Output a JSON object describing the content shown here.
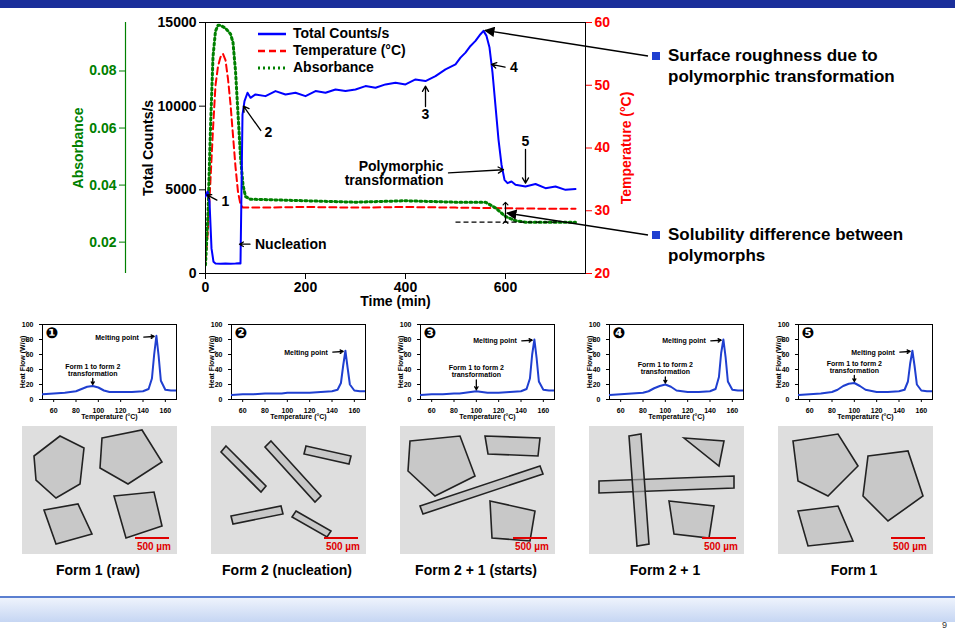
{
  "page_number": 9,
  "chart_data": [
    {
      "type": "line",
      "x_label": "Time (min)",
      "xlim": [
        0,
        760
      ],
      "xticks": [
        0,
        200,
        400,
        600
      ],
      "y_label": "Total Counts/s",
      "ylim": [
        0,
        15000
      ],
      "yticks": [
        0,
        5000,
        10000,
        15000
      ],
      "y2_label": "Temperature (°C)",
      "y2lim": [
        20,
        60
      ],
      "y2ticks": [
        20,
        30,
        40,
        50,
        60
      ],
      "y3_label": "Absorbance",
      "y3lim": [
        0.009,
        0.097
      ],
      "y3ticks": [
        0.02,
        0.04,
        0.06,
        0.08
      ],
      "legend": "top-left",
      "series": [
        {
          "name": "Total Counts/s",
          "color": "#0000ff",
          "line_style": "solid",
          "x": [
            0,
            4,
            8,
            12,
            16,
            20,
            30,
            40,
            50,
            60,
            66,
            70,
            72,
            74,
            78,
            84,
            90,
            100,
            120,
            140,
            160,
            180,
            200,
            220,
            240,
            260,
            280,
            300,
            320,
            340,
            360,
            380,
            400,
            420,
            440,
            460,
            480,
            500,
            510,
            520,
            530,
            540,
            550,
            556,
            562,
            568,
            574,
            580,
            586,
            592,
            598,
            604,
            612,
            620,
            640,
            660,
            680,
            700,
            720,
            740
          ],
          "values": [
            4600,
            4900,
            4300,
            1500,
            700,
            600,
            580,
            600,
            590,
            600,
            610,
            600,
            5000,
            9500,
            10300,
            10800,
            10500,
            10700,
            10600,
            10900,
            10700,
            10800,
            10600,
            10900,
            10800,
            11000,
            10900,
            11000,
            11200,
            11100,
            11300,
            11400,
            11300,
            11600,
            11500,
            11800,
            12200,
            12500,
            12900,
            13200,
            13600,
            13900,
            14300,
            14500,
            14200,
            13500,
            12000,
            10000,
            8000,
            6500,
            5600,
            5400,
            5500,
            5300,
            5200,
            5350,
            5100,
            5200,
            5000,
            5050
          ]
        },
        {
          "name": "Temperature (°C)",
          "color": "#ff0000",
          "line_style": "dashed",
          "axis": "y2",
          "x": [
            0,
            5,
            10,
            15,
            20,
            25,
            30,
            35,
            40,
            45,
            50,
            55,
            60,
            65,
            70,
            75,
            80,
            100,
            200,
            300,
            400,
            500,
            600,
            700,
            740
          ],
          "values": [
            22,
            27,
            35,
            43,
            50,
            53,
            54.5,
            55,
            54,
            51,
            47,
            42,
            37,
            33,
            31,
            30.5,
            30.5,
            30.5,
            30.6,
            30.5,
            30.6,
            30.5,
            30.4,
            30.3,
            30.3
          ]
        },
        {
          "name": "Absorbance",
          "color": "#008000",
          "line_style": "dotted",
          "axis": "y3",
          "x": [
            0,
            5,
            10,
            15,
            20,
            25,
            30,
            40,
            50,
            55,
            60,
            65,
            70,
            75,
            80,
            90,
            100,
            200,
            300,
            400,
            500,
            560,
            580,
            600,
            620,
            640,
            700,
            740
          ],
          "values": [
            0.012,
            0.03,
            0.06,
            0.085,
            0.094,
            0.096,
            0.096,
            0.095,
            0.093,
            0.09,
            0.08,
            0.065,
            0.05,
            0.04,
            0.036,
            0.035,
            0.035,
            0.0345,
            0.034,
            0.0345,
            0.034,
            0.034,
            0.032,
            0.029,
            0.0275,
            0.027,
            0.027,
            0.027
          ]
        }
      ],
      "annotations": [
        {
          "text": "1",
          "x": 28,
          "y": 4300,
          "point_x": 3,
          "point_y": 4700
        },
        {
          "text": "2",
          "x": 114,
          "y": 8400,
          "point_x": 76,
          "point_y": 10000
        },
        {
          "text": "3",
          "x": 440,
          "y": 9800,
          "point_x": 440,
          "point_y": 11200
        },
        {
          "text": "4",
          "x": 605,
          "y": 12300,
          "point_x": 572,
          "point_y": 12500
        },
        {
          "text": "5",
          "x": 640,
          "y": 7600,
          "point_x": 640,
          "point_y": 5400
        },
        {
          "text": "Nucleation",
          "x": 95,
          "y": 1750,
          "point_x": 68,
          "point_y": 1750
        },
        {
          "text": "Polymorphic transformation",
          "x": 480,
          "y": 6000,
          "point_x": 596,
          "point_y": 6200
        }
      ],
      "solubility_line": {
        "x": [
          500,
          710
        ],
        "y": 0.027
      },
      "solubility_arrow": {
        "x": 600,
        "y": [
          0.027,
          0.0335
        ]
      },
      "side_notes": [
        {
          "text": "Surface roughness due to polymorphic transformation",
          "x": 556,
          "y": 14500
        },
        {
          "text": "Solubility difference between polymorphs",
          "x": 600,
          "y": 0.03,
          "axis": "y3"
        }
      ]
    },
    {
      "type": "line",
      "label": "❶",
      "color": "#1f3fd0",
      "x_label": "Temperature (°C)",
      "y_label": "Heat Flow (W/g)",
      "xlim": [
        50,
        170
      ],
      "xticks": [
        60,
        80,
        100,
        120,
        140,
        160
      ],
      "ylim": [
        0,
        100
      ],
      "yticks": [
        0,
        20,
        40,
        60,
        80,
        100
      ],
      "x": [
        50,
        60,
        70,
        80,
        85,
        90,
        95,
        100,
        105,
        110,
        120,
        130,
        140,
        145,
        148,
        150,
        152,
        154,
        156,
        160,
        165,
        170
      ],
      "values": [
        7,
        8,
        9,
        11,
        14,
        17,
        18,
        16,
        12,
        10,
        10,
        10,
        11,
        14,
        28,
        60,
        85,
        58,
        25,
        13,
        12,
        12
      ],
      "annotations": [
        {
          "text": "Melting point",
          "x": 138,
          "y": 83,
          "point_x": 150,
          "point_y": 84
        },
        {
          "text": "Form 1 to form 2 transformation",
          "x": 95,
          "y": 32,
          "point_x": 95,
          "point_y": 20
        }
      ],
      "caption": "Form 1 (raw)",
      "scale_bar": "500 µm"
    },
    {
      "type": "line",
      "label": "❷",
      "color": "#1f3fd0",
      "x_label": "Temperature (°C)",
      "y_label": "Heat Flow (W/g)",
      "xlim": [
        50,
        170
      ],
      "xticks": [
        60,
        80,
        100,
        120,
        140,
        160
      ],
      "ylim": [
        0,
        100
      ],
      "yticks": [
        0,
        20,
        40,
        60,
        80,
        100
      ],
      "x": [
        50,
        60,
        70,
        80,
        85,
        90,
        95,
        100,
        105,
        110,
        120,
        130,
        140,
        145,
        148,
        150,
        152,
        154,
        156,
        160,
        165,
        170
      ],
      "values": [
        6,
        7,
        7,
        8,
        8,
        8,
        8,
        9,
        9,
        9,
        9,
        10,
        11,
        13,
        22,
        45,
        65,
        42,
        20,
        12,
        11,
        11
      ],
      "annotations": [
        {
          "text": "Melting point",
          "x": 138,
          "y": 63,
          "point_x": 150,
          "point_y": 64
        }
      ],
      "caption": "Form 2 (nucleation)",
      "scale_bar": "500 µm"
    },
    {
      "type": "line",
      "label": "❸",
      "color": "#1f3fd0",
      "x_label": "Temperature (°C)",
      "y_label": "Heat Flow (W/g)",
      "xlim": [
        50,
        170
      ],
      "xticks": [
        60,
        80,
        100,
        120,
        140,
        160
      ],
      "ylim": [
        0,
        100
      ],
      "yticks": [
        0,
        20,
        40,
        60,
        80,
        100
      ],
      "x": [
        50,
        60,
        70,
        80,
        85,
        90,
        95,
        100,
        105,
        110,
        120,
        130,
        140,
        145,
        148,
        150,
        152,
        154,
        156,
        160,
        165,
        170
      ],
      "values": [
        6,
        7,
        7,
        8,
        8,
        9,
        10,
        11,
        10,
        9,
        9,
        10,
        11,
        14,
        28,
        60,
        80,
        55,
        24,
        13,
        12,
        12
      ],
      "annotations": [
        {
          "text": "Melting point",
          "x": 138,
          "y": 78,
          "point_x": 150,
          "point_y": 79
        },
        {
          "text": "Form 1 to form 2 transformation",
          "x": 100,
          "y": 30,
          "point_x": 100,
          "point_y": 13
        }
      ],
      "caption": "Form 2 + 1 (starts)",
      "scale_bar": "500 µm"
    },
    {
      "type": "line",
      "label": "❹",
      "color": "#1f3fd0",
      "x_label": "Temperature (°C)",
      "y_label": "Heat Flow (W/g)",
      "xlim": [
        50,
        170
      ],
      "xticks": [
        60,
        80,
        100,
        120,
        140,
        160
      ],
      "ylim": [
        0,
        100
      ],
      "yticks": [
        0,
        20,
        40,
        60,
        80,
        100
      ],
      "x": [
        50,
        60,
        70,
        80,
        85,
        90,
        95,
        100,
        105,
        110,
        120,
        130,
        140,
        145,
        148,
        150,
        152,
        154,
        156,
        160,
        165,
        170
      ],
      "values": [
        6,
        7,
        8,
        9,
        11,
        15,
        18,
        20,
        17,
        12,
        10,
        10,
        11,
        14,
        30,
        62,
        80,
        56,
        24,
        13,
        12,
        12
      ],
      "annotations": [
        {
          "text": "Melting point",
          "x": 138,
          "y": 78,
          "point_x": 150,
          "point_y": 79
        },
        {
          "text": "Form 1 to form 2 transformation",
          "x": 100,
          "y": 34,
          "point_x": 100,
          "point_y": 22
        }
      ],
      "caption": "Form 2 + 1",
      "scale_bar": "500 µm"
    },
    {
      "type": "line",
      "label": "❺",
      "color": "#1f3fd0",
      "x_label": "Temperature (°C)",
      "y_label": "Heat Flow (W/g)",
      "xlim": [
        50,
        170
      ],
      "xticks": [
        60,
        80,
        100,
        120,
        140,
        160
      ],
      "ylim": [
        0,
        100
      ],
      "yticks": [
        0,
        20,
        40,
        60,
        80,
        100
      ],
      "x": [
        50,
        60,
        70,
        80,
        85,
        90,
        95,
        100,
        105,
        110,
        120,
        130,
        140,
        145,
        148,
        150,
        152,
        154,
        156,
        160,
        165,
        170
      ],
      "values": [
        6,
        7,
        8,
        10,
        13,
        18,
        21,
        22,
        18,
        13,
        10,
        10,
        11,
        13,
        24,
        48,
        65,
        44,
        20,
        12,
        11,
        11
      ],
      "annotations": [
        {
          "text": "Melting point",
          "x": 138,
          "y": 63,
          "point_x": 150,
          "point_y": 64
        },
        {
          "text": "Form 1 to form 2 transformation",
          "x": 100,
          "y": 36,
          "point_x": 100,
          "point_y": 24
        }
      ],
      "caption": "Form 1",
      "scale_bar": "500 µm"
    }
  ]
}
